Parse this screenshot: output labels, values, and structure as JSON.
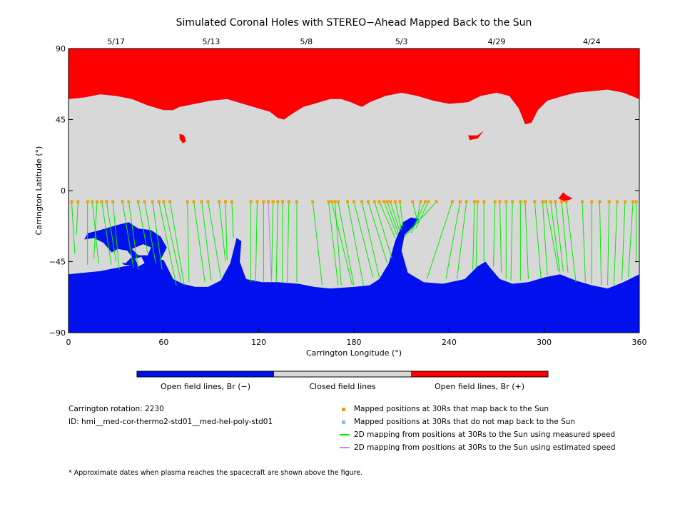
{
  "colors": {
    "negative": "#0011ee",
    "closed": "#d8d8d8",
    "positive": "#ff0000",
    "mapped_yes": "#f0a000",
    "mapped_no": "#88bbee",
    "measured_line": "#00ee00",
    "estimated_line": "#bb88ee"
  },
  "chart_data": {
    "type": "map",
    "title": "Simulated Coronal Holes with STEREO−Ahead Mapped Back to the Sun",
    "xlabel": "Carrington Longitude (°)",
    "ylabel": "Carrington Latitude (°)",
    "xlim": [
      0,
      360
    ],
    "ylim": [
      -90,
      90
    ],
    "x_ticks": [
      "0",
      "60",
      "120",
      "180",
      "240",
      "300",
      "360"
    ],
    "y_ticks": [
      "90",
      "45",
      "0",
      "−45",
      "−90"
    ],
    "top_dates": [
      {
        "lon": 30,
        "label": "5/17"
      },
      {
        "lon": 90,
        "label": "5/13"
      },
      {
        "lon": 150,
        "label": "5/8"
      },
      {
        "lon": 210,
        "label": "5/3"
      },
      {
        "lon": 270,
        "label": "4/29"
      },
      {
        "lon": 330,
        "label": "4/24"
      }
    ],
    "north_boundary": [
      [
        0,
        58
      ],
      [
        10,
        59
      ],
      [
        20,
        61
      ],
      [
        30,
        60
      ],
      [
        40,
        58
      ],
      [
        50,
        54
      ],
      [
        60,
        51
      ],
      [
        66,
        51
      ],
      [
        70,
        53
      ],
      [
        75,
        54
      ],
      [
        80,
        55
      ],
      [
        90,
        57
      ],
      [
        100,
        58
      ],
      [
        110,
        55
      ],
      [
        120,
        52
      ],
      [
        127,
        50
      ],
      [
        132,
        46
      ],
      [
        136,
        45
      ],
      [
        140,
        48
      ],
      [
        148,
        53
      ],
      [
        155,
        55
      ],
      [
        165,
        58
      ],
      [
        172,
        58
      ],
      [
        178,
        56
      ],
      [
        185,
        53
      ],
      [
        190,
        56
      ],
      [
        200,
        60
      ],
      [
        210,
        62
      ],
      [
        220,
        60
      ],
      [
        230,
        57
      ],
      [
        240,
        55
      ],
      [
        252,
        56
      ],
      [
        260,
        60
      ],
      [
        270,
        62
      ],
      [
        278,
        60
      ],
      [
        284,
        52
      ],
      [
        288,
        42
      ],
      [
        292,
        43
      ],
      [
        296,
        51
      ],
      [
        302,
        57
      ],
      [
        312,
        60
      ],
      [
        320,
        62
      ],
      [
        330,
        63
      ],
      [
        340,
        64
      ],
      [
        350,
        62
      ],
      [
        360,
        58
      ]
    ],
    "south_boundary": [
      [
        0,
        -53
      ],
      [
        10,
        -52
      ],
      [
        20,
        -51
      ],
      [
        35,
        -48
      ],
      [
        48,
        -46
      ],
      [
        55,
        -43
      ],
      [
        60,
        -44
      ],
      [
        66,
        -56
      ],
      [
        72,
        -59
      ],
      [
        80,
        -61
      ],
      [
        88,
        -61
      ],
      [
        96,
        -57
      ],
      [
        102,
        -46
      ],
      [
        106,
        -30
      ],
      [
        109,
        -32
      ],
      [
        108,
        -45
      ],
      [
        112,
        -56
      ],
      [
        122,
        -58
      ],
      [
        132,
        -58
      ],
      [
        145,
        -59
      ],
      [
        155,
        -61
      ],
      [
        165,
        -62
      ],
      [
        180,
        -61
      ],
      [
        190,
        -60
      ],
      [
        196,
        -56
      ],
      [
        202,
        -46
      ],
      [
        206,
        -32
      ],
      [
        211,
        -20
      ],
      [
        216,
        -17
      ],
      [
        221,
        -18
      ],
      [
        218,
        -22
      ],
      [
        212,
        -28
      ],
      [
        210,
        -38
      ],
      [
        214,
        -52
      ],
      [
        224,
        -58
      ],
      [
        236,
        -59
      ],
      [
        250,
        -56
      ],
      [
        258,
        -48
      ],
      [
        263,
        -45
      ],
      [
        266,
        -49
      ],
      [
        272,
        -56
      ],
      [
        280,
        -59
      ],
      [
        290,
        -58
      ],
      [
        300,
        -55
      ],
      [
        310,
        -53
      ],
      [
        320,
        -57
      ],
      [
        330,
        -60
      ],
      [
        340,
        -62
      ],
      [
        350,
        -58
      ],
      [
        360,
        -53
      ]
    ],
    "footpoints": [
      [
        2,
        -7
      ],
      [
        6,
        -7
      ],
      [
        12,
        -7
      ],
      [
        15,
        -7
      ],
      [
        18,
        -7
      ],
      [
        21,
        -7
      ],
      [
        24,
        -7
      ],
      [
        28,
        -7
      ],
      [
        34,
        -7
      ],
      [
        38,
        -7
      ],
      [
        44,
        -7
      ],
      [
        48,
        -7
      ],
      [
        53,
        -7
      ],
      [
        57,
        -7
      ],
      [
        60,
        -7
      ],
      [
        64,
        -7
      ],
      [
        75,
        -7
      ],
      [
        79,
        -7
      ],
      [
        84,
        -7
      ],
      [
        88,
        -7
      ],
      [
        95,
        -7
      ],
      [
        99,
        -7
      ],
      [
        103,
        -7
      ],
      [
        115,
        -7
      ],
      [
        119,
        -7
      ],
      [
        123,
        -7
      ],
      [
        126,
        -7
      ],
      [
        129,
        -7
      ],
      [
        132,
        -7
      ],
      [
        135,
        -7
      ],
      [
        139,
        -7
      ],
      [
        144,
        -7
      ],
      [
        154,
        -7
      ],
      [
        164,
        -7
      ],
      [
        166,
        -7
      ],
      [
        168,
        -7
      ],
      [
        170,
        -7
      ],
      [
        176,
        -7
      ],
      [
        180,
        -7
      ],
      [
        185,
        -7
      ],
      [
        189,
        -7
      ],
      [
        193,
        -7
      ],
      [
        196,
        -7
      ],
      [
        199,
        -7
      ],
      [
        201,
        -7
      ],
      [
        203,
        -7
      ],
      [
        206,
        -7
      ],
      [
        209,
        -7
      ],
      [
        217,
        -7
      ],
      [
        222,
        -7
      ],
      [
        225,
        -7
      ],
      [
        227,
        -7
      ],
      [
        232,
        -7
      ],
      [
        242,
        -7
      ],
      [
        247,
        -7
      ],
      [
        251,
        -7
      ],
      [
        256,
        -7
      ],
      [
        258,
        -7
      ],
      [
        262,
        -7
      ],
      [
        269,
        -7
      ],
      [
        272,
        -7
      ],
      [
        276,
        -7
      ],
      [
        280,
        -7
      ],
      [
        285,
        -7
      ],
      [
        288,
        -7
      ],
      [
        294,
        -7
      ],
      [
        299,
        -7
      ],
      [
        301,
        -7
      ],
      [
        304,
        -7
      ],
      [
        307,
        -7
      ],
      [
        311,
        -7
      ],
      [
        314,
        -7
      ],
      [
        324,
        -7
      ],
      [
        330,
        -7
      ],
      [
        335,
        -7
      ],
      [
        341,
        -7
      ],
      [
        346,
        -7
      ],
      [
        351,
        -7
      ],
      [
        356,
        -7
      ],
      [
        358,
        -7
      ]
    ],
    "measured_lines": [
      [
        2,
        -7,
        4,
        -40
      ],
      [
        6,
        -7,
        5,
        -28
      ],
      [
        12,
        -7,
        12,
        -47
      ],
      [
        15,
        -7,
        19,
        -46
      ],
      [
        18,
        -7,
        16,
        -43
      ],
      [
        21,
        -7,
        27,
        -47
      ],
      [
        24,
        -7,
        30,
        -45
      ],
      [
        28,
        -7,
        32,
        -50
      ],
      [
        34,
        -7,
        41,
        -49
      ],
      [
        38,
        -7,
        44,
        -50
      ],
      [
        44,
        -7,
        50,
        -40
      ],
      [
        48,
        -7,
        55,
        -46
      ],
      [
        53,
        -7,
        59,
        -50
      ],
      [
        57,
        -7,
        68,
        -60
      ],
      [
        60,
        -7,
        71,
        -58
      ],
      [
        64,
        -7,
        73,
        -60
      ],
      [
        75,
        -7,
        76,
        -58
      ],
      [
        79,
        -7,
        86,
        -58
      ],
      [
        84,
        -7,
        90,
        -57
      ],
      [
        88,
        -7,
        96,
        -55
      ],
      [
        95,
        -7,
        99,
        -45
      ],
      [
        99,
        -7,
        100,
        -44
      ],
      [
        103,
        -7,
        104,
        -30
      ],
      [
        115,
        -7,
        115,
        -58
      ],
      [
        119,
        -7,
        118,
        -58
      ],
      [
        123,
        -7,
        123,
        -58
      ],
      [
        129,
        -7,
        128,
        -58
      ],
      [
        132,
        -7,
        131,
        -58
      ],
      [
        135,
        -7,
        135,
        -58
      ],
      [
        139,
        -7,
        138,
        -58
      ],
      [
        144,
        -7,
        144,
        -58
      ],
      [
        154,
        -7,
        160,
        -60
      ],
      [
        164,
        -7,
        170,
        -60
      ],
      [
        166,
        -7,
        179,
        -60
      ],
      [
        168,
        -7,
        172,
        -60
      ],
      [
        170,
        -7,
        180,
        -60
      ],
      [
        176,
        -7,
        186,
        -60
      ],
      [
        180,
        -7,
        192,
        -55
      ],
      [
        185,
        -7,
        196,
        -55
      ],
      [
        189,
        -7,
        201,
        -46
      ],
      [
        193,
        -7,
        204,
        -43
      ],
      [
        196,
        -7,
        206,
        -30
      ],
      [
        199,
        -7,
        207,
        -28
      ],
      [
        201,
        -7,
        208,
        -27
      ],
      [
        203,
        -7,
        209,
        -26
      ],
      [
        206,
        -7,
        210,
        -25
      ],
      [
        209,
        -7,
        211,
        -23
      ],
      [
        217,
        -7,
        220,
        -19
      ],
      [
        222,
        -7,
        220,
        -18
      ],
      [
        225,
        -7,
        216,
        -27
      ],
      [
        227,
        -7,
        219,
        -24
      ],
      [
        232,
        -7,
        212,
        -29
      ],
      [
        242,
        -7,
        226,
        -56
      ],
      [
        247,
        -7,
        238,
        -56
      ],
      [
        251,
        -7,
        245,
        -56
      ],
      [
        256,
        -7,
        255,
        -50
      ],
      [
        258,
        -7,
        257,
        -49
      ],
      [
        262,
        -7,
        262,
        -45
      ],
      [
        269,
        -7,
        268,
        -48
      ],
      [
        272,
        -7,
        273,
        -52
      ],
      [
        276,
        -7,
        276,
        -56
      ],
      [
        280,
        -7,
        279,
        -57
      ],
      [
        285,
        -7,
        285,
        -57
      ],
      [
        288,
        -7,
        290,
        -56
      ],
      [
        294,
        -7,
        298,
        -56
      ],
      [
        299,
        -7,
        302,
        -54
      ],
      [
        301,
        -7,
        309,
        -51
      ],
      [
        304,
        -7,
        310,
        -52
      ],
      [
        307,
        -7,
        312,
        -51
      ],
      [
        311,
        -7,
        315,
        -52
      ],
      [
        314,
        -7,
        320,
        -58
      ],
      [
        324,
        -7,
        326,
        -58
      ],
      [
        330,
        -7,
        330,
        -59
      ],
      [
        335,
        -7,
        336,
        -60
      ],
      [
        341,
        -7,
        340,
        -60
      ],
      [
        346,
        -7,
        344,
        -60
      ],
      [
        351,
        -7,
        349,
        -57
      ],
      [
        356,
        -7,
        353,
        -55
      ],
      [
        358,
        -7,
        358,
        -46
      ]
    ],
    "estimated_lines": [
      [
        126,
        -7,
        128,
        -58
      ]
    ],
    "colorbar_labels": [
      "Open field lines, Br (−)",
      "Closed field lines",
      "Open field lines, Br (+)"
    ],
    "legend": [
      {
        "kind": "square",
        "color_key": "mapped_yes",
        "label": "Mapped positions at 30Rs that map back to the Sun"
      },
      {
        "kind": "square",
        "color_key": "mapped_no",
        "label": "Mapped positions at 30Rs that do not map back to the Sun"
      },
      {
        "kind": "line",
        "color_key": "measured_line",
        "label": "2D mapping from positions at 30Rs to the Sun using measured speed"
      },
      {
        "kind": "line",
        "color_key": "estimated_line",
        "label": "2D mapping from positions at 30Rs to the Sun using estimated speed"
      }
    ]
  },
  "info": {
    "rotation": "Carrington rotation: 2230",
    "model_id": "ID: hmi__med-cor-thermo2-std01__med-hel-poly-std01",
    "footnote": "* Approximate dates when plasma reaches the spacecraft are shown above the figure."
  }
}
